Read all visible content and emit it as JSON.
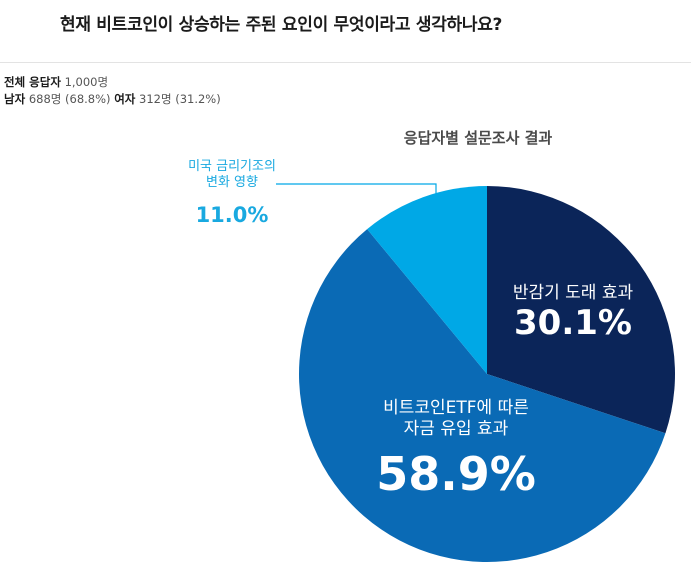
{
  "title": "현재 비트코인이 상승하는 주된 요인이 무엇이라고 생각하나요?",
  "respondents": {
    "total_label": "전체 응답자",
    "total_value": "1,000명",
    "male_label": "남자",
    "male_value": "688명 (68.8%)",
    "female_label": "여자",
    "female_value": "312명 (31.2%)"
  },
  "chart_data": {
    "type": "pie",
    "title": "응답자별 설문조사 결과",
    "start": "12 o'clock, clockwise",
    "slices": [
      {
        "lines": [
          "반감기 도래 효과"
        ],
        "value": 30.1,
        "value_label": "30.1%",
        "color": "#0b2559",
        "label_color": "#ffffff",
        "label_placement": "inside"
      },
      {
        "lines": [
          "비트코인ETF에 따른",
          "자금 유입 효과"
        ],
        "value": 58.9,
        "value_label": "58.9%",
        "color": "#0a6ab5",
        "label_color": "#ffffff",
        "label_placement": "inside"
      },
      {
        "lines": [
          "미국 금리기조의",
          "변화 영향"
        ],
        "value": 11.0,
        "value_label": "11.0%",
        "color": "#00a8e6",
        "label_color": "#19a9e0",
        "label_placement": "outside-callout"
      }
    ]
  }
}
